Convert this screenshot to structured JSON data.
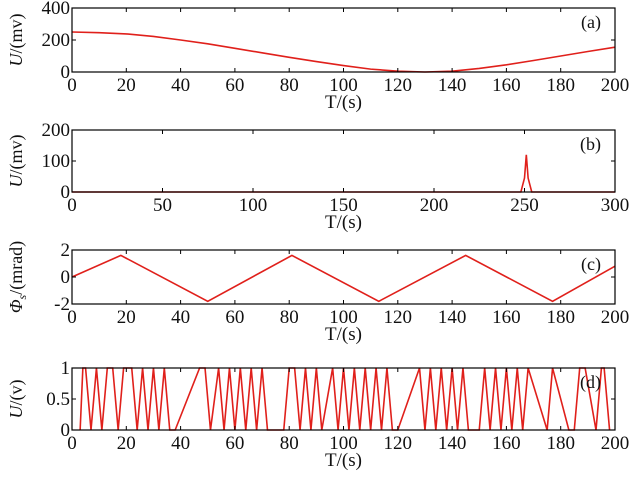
{
  "figure": {
    "panel_count": 4
  },
  "chart_data": [
    {
      "type": "line",
      "panel_label": "(a)",
      "xlabel": "T/(s)",
      "ylabel": "U/(mv)",
      "xlim": [
        0,
        200
      ],
      "ylim": [
        0,
        400
      ],
      "xticks": [
        0,
        20,
        40,
        60,
        80,
        100,
        120,
        140,
        160,
        180,
        200
      ],
      "yticks": [
        0,
        200,
        400
      ],
      "grid": false,
      "series": [
        {
          "color": "#e0201b",
          "x": [
            0,
            10,
            20,
            30,
            40,
            50,
            60,
            70,
            80,
            90,
            100,
            110,
            120,
            130,
            140,
            150,
            160,
            170,
            180,
            190,
            200
          ],
          "y": [
            250,
            246,
            238,
            222,
            200,
            176,
            148,
            120,
            92,
            65,
            40,
            18,
            5,
            0,
            5,
            22,
            45,
            72,
            100,
            128,
            155
          ]
        }
      ]
    },
    {
      "type": "line",
      "panel_label": "(b)",
      "xlabel": "T/(s)",
      "ylabel": "U/(mv)",
      "xlim": [
        0,
        300
      ],
      "ylim": [
        0,
        200
      ],
      "xticks": [
        0,
        50,
        100,
        150,
        200,
        250,
        300
      ],
      "yticks": [
        0,
        100,
        200
      ],
      "grid": false,
      "series": [
        {
          "color": "#e0201b",
          "x": [
            0,
            248,
            250,
            251,
            252,
            254,
            300
          ],
          "y": [
            0,
            0,
            45,
            120,
            45,
            0,
            0
          ]
        }
      ]
    },
    {
      "type": "line",
      "panel_label": "(c)",
      "xlabel": "T/(s)",
      "ylabel": "Φs/(mrad)",
      "ylabel_main": "Φ",
      "ylabel_sub": "s",
      "ylabel_rest": "/(mrad)",
      "xlim": [
        0,
        200
      ],
      "ylim": [
        -2,
        2
      ],
      "xticks": [
        0,
        20,
        40,
        60,
        80,
        100,
        120,
        140,
        160,
        180,
        200
      ],
      "yticks": [
        -2,
        0,
        2
      ],
      "grid": false,
      "series": [
        {
          "color": "#e0201b",
          "x": [
            0,
            18,
            50,
            81,
            113,
            145,
            177,
            200
          ],
          "y": [
            0.0,
            1.6,
            -1.8,
            1.6,
            -1.8,
            1.6,
            -1.8,
            0.8
          ]
        }
      ]
    },
    {
      "type": "line",
      "panel_label": "(d)",
      "xlabel": "T/(s)",
      "ylabel": "U/(v)",
      "xlim": [
        0,
        200
      ],
      "ylim": [
        0,
        1
      ],
      "xticks": [
        0,
        20,
        40,
        60,
        80,
        100,
        120,
        140,
        160,
        180,
        200
      ],
      "yticks": [
        0,
        0.5,
        1
      ],
      "grid": false,
      "series": [
        {
          "color": "#e0201b",
          "x": [
            3,
            4,
            5,
            7,
            9,
            11,
            13,
            15,
            17,
            19,
            22,
            24,
            26,
            28,
            30,
            32,
            34,
            36,
            38,
            47,
            49,
            51,
            54,
            56,
            58,
            60,
            62,
            64,
            66,
            68,
            70,
            72,
            78,
            80,
            82,
            84,
            86,
            88,
            90,
            92,
            96,
            98,
            100,
            102,
            104,
            106,
            108,
            110,
            112,
            114,
            116,
            118,
            120,
            128,
            130,
            132,
            134,
            136,
            138,
            140,
            142,
            144,
            146,
            150,
            152,
            154,
            156,
            158,
            160,
            162,
            164,
            166,
            168,
            175,
            177,
            183,
            185,
            187,
            189,
            193,
            195,
            196,
            198
          ],
          "y": [
            0,
            1,
            1,
            0,
            1,
            0,
            1,
            1,
            0,
            1,
            1,
            0,
            1,
            0,
            1,
            0,
            1,
            0,
            0,
            1,
            1,
            0,
            1,
            0,
            1,
            0,
            1,
            0,
            1,
            0,
            1,
            0,
            0,
            1,
            1,
            0,
            1,
            0,
            1,
            0,
            1,
            0,
            1,
            0,
            1,
            0,
            1,
            0,
            1,
            0,
            1,
            0,
            0,
            1,
            0,
            1,
            0,
            1,
            0,
            1,
            0,
            1,
            0,
            0,
            1,
            0,
            1,
            0,
            1,
            0,
            1,
            0,
            1,
            0,
            1,
            0,
            0,
            1,
            1,
            0,
            1,
            1,
            0
          ]
        }
      ]
    }
  ]
}
